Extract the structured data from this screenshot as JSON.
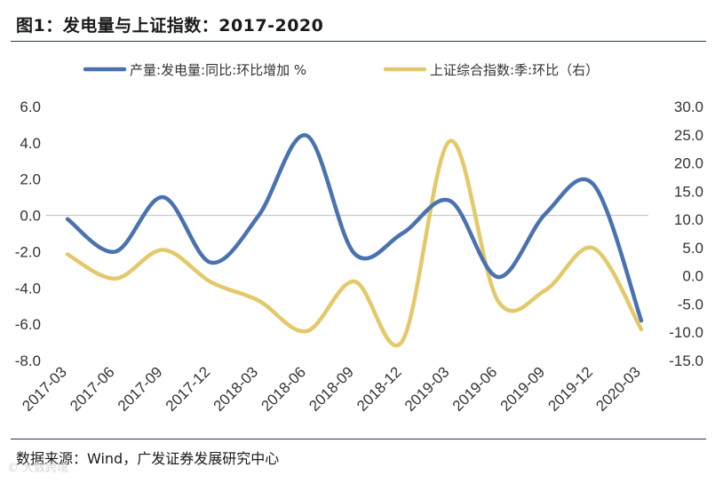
{
  "header": {
    "title": "图1：发电量与上证指数：2017-2020"
  },
  "footer": {
    "source": "数据来源：Wind，广发证券发展研究中心",
    "watermark": "© 大数跨境"
  },
  "chart_data": {
    "type": "line",
    "title": "发电量与上证指数：2017-2020",
    "categories": [
      "2017-03",
      "2017-06",
      "2017-09",
      "2017-12",
      "2018-03",
      "2018-06",
      "2018-09",
      "2018-12",
      "2019-03",
      "2019-06",
      "2019-09",
      "2019-12",
      "2020-03"
    ],
    "y_left": {
      "min": -8,
      "max": 6,
      "step": 2,
      "labels": [
        "6.0",
        "4.0",
        "2.0",
        "0.0",
        "-2.0",
        "-4.0",
        "-6.0",
        "-8.0"
      ]
    },
    "y_right": {
      "min": -15,
      "max": 30,
      "step": 5,
      "labels": [
        "30.0",
        "25.0",
        "20.0",
        "15.0",
        "10.0",
        "5.0",
        "0.0",
        "-5.0",
        "-10.0",
        "-15.0"
      ]
    },
    "legend_position": "top",
    "series": [
      {
        "name": "产量:发电量:同比:环比增加 %",
        "axis": "left",
        "color": "#4a72b0",
        "values": [
          -0.2,
          -2.0,
          1.0,
          -2.6,
          0.0,
          4.4,
          -2.1,
          -1.0,
          0.8,
          -3.4,
          0.1,
          1.7,
          -5.8
        ]
      },
      {
        "name": "上证综合指数:季:环比（右）",
        "axis": "right",
        "color": "#e4c96b",
        "values": [
          3.8,
          -0.5,
          4.6,
          -1.1,
          -4.4,
          -9.8,
          -1.0,
          -11.6,
          23.9,
          -4.4,
          -2.5,
          4.9,
          -9.5
        ]
      }
    ]
  }
}
